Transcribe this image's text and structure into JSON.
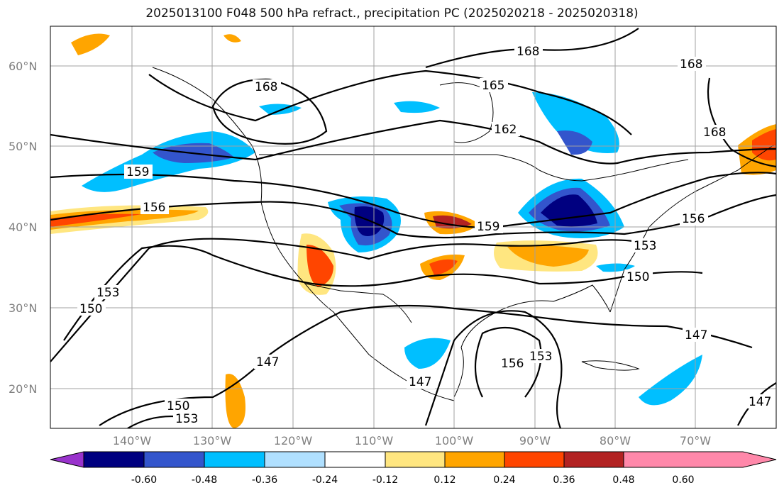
{
  "title": "2025013100 F048 500 hPa refract., precipitation PC (2025020218 - 2025020318)",
  "lat_labels": [
    "60°N",
    "50°N",
    "40°N",
    "30°N",
    "20°N"
  ],
  "lon_labels": [
    "140°W",
    "130°W",
    "120°W",
    "110°W",
    "100°W",
    "90°W",
    "80°W",
    "70°W"
  ],
  "contour_labels": [
    "168",
    "168",
    "165",
    "162",
    "168",
    "168",
    "159",
    "156",
    "159",
    "156",
    "153",
    "150",
    "150",
    "153",
    "147",
    "147",
    "147",
    "156",
    "153",
    "150",
    "153",
    "147"
  ],
  "colorbar": {
    "ticks": [
      "-0.60",
      "-0.48",
      "-0.36",
      "-0.24",
      "-0.12",
      "0.12",
      "0.24",
      "0.36",
      "0.48",
      "0.60"
    ],
    "colors": [
      "#9933cc",
      "#000080",
      "#3355cc",
      "#00bfff",
      "#b0e0ff",
      "#ffffff",
      "#ffe680",
      "#ffa500",
      "#ff4500",
      "#b22222",
      "#ff88aa"
    ]
  }
}
